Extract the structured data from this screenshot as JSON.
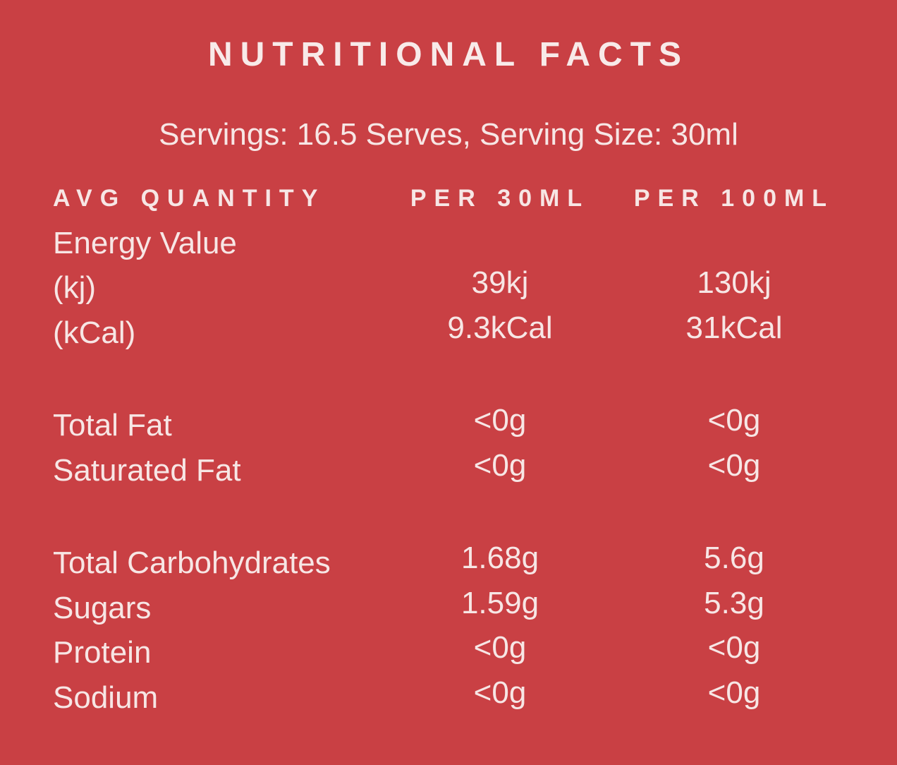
{
  "colors": {
    "background": "#C94044",
    "text": "#F7E6E5",
    "title_text": "#F8EAE9"
  },
  "title": "NUTRITIONAL FACTS",
  "servings_line": "Servings: 16.5 Serves, Serving Size: 30ml",
  "table": {
    "headers": [
      "AVG QUANTITY",
      "PER 30ML",
      "PER 100ML"
    ],
    "rows": [
      {
        "label": "Energy Value",
        "per_30ml": "",
        "per_100ml": ""
      },
      {
        "label": "(kj)",
        "per_30ml": "39kj",
        "per_100ml": "130kj"
      },
      {
        "label": "(kCal)",
        "per_30ml": "9.3kCal",
        "per_100ml": "31kCal"
      },
      {
        "spacer": true
      },
      {
        "label": "Total Fat",
        "per_30ml": "<0g",
        "per_100ml": "<0g"
      },
      {
        "label": "Saturated Fat",
        "per_30ml": "<0g",
        "per_100ml": "<0g"
      },
      {
        "spacer": true
      },
      {
        "label": "Total Carbohydrates",
        "per_30ml": "1.68g",
        "per_100ml": "5.6g"
      },
      {
        "label": "Sugars",
        "per_30ml": "1.59g",
        "per_100ml": "5.3g"
      },
      {
        "label": "Protein",
        "per_30ml": "<0g",
        "per_100ml": "<0g"
      },
      {
        "label": "Sodium",
        "per_30ml": "<0g",
        "per_100ml": "<0g"
      }
    ]
  }
}
